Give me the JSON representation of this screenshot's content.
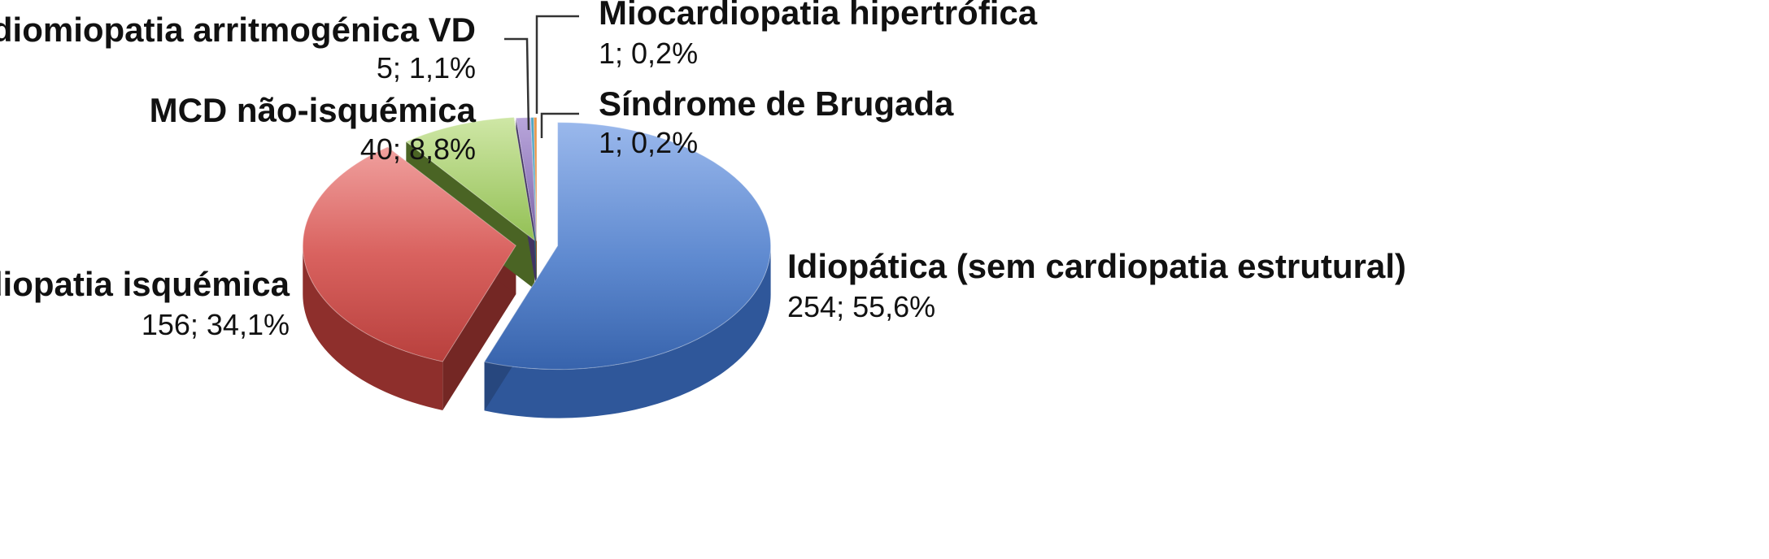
{
  "chart_data": {
    "type": "pie",
    "style": "3d-exploded",
    "slices": [
      {
        "name": "Idiopática (sem cardiopatia estrutural)",
        "value": 254,
        "percent": "55,6%",
        "label": "254; 55,6%",
        "color": "#4a77bf"
      },
      {
        "name": "Cardiopatia isquémica",
        "value": 156,
        "percent": "34,1%",
        "label": "156; 34,1%",
        "color": "#c94a48"
      },
      {
        "name": "MCD não-isquémica",
        "value": 40,
        "percent": "8,8%",
        "label": "40; 8,8%",
        "color": "#9cc45a"
      },
      {
        "name": "Cardiomiopatia arritmogénica VD",
        "value": 5,
        "percent": "1,1%",
        "label": "5; 1,1%",
        "color": "#7b63a8"
      },
      {
        "name": "Miocardiopatia hipertrófica",
        "value": 1,
        "percent": "0,2%",
        "label": "1; 0,2%",
        "color": "#4fa6c4"
      },
      {
        "name": "Síndrome de Brugada",
        "value": 1,
        "percent": "0,2%",
        "label": "1; 0,2%",
        "color": "#e8954a"
      }
    ],
    "legend": "none"
  }
}
